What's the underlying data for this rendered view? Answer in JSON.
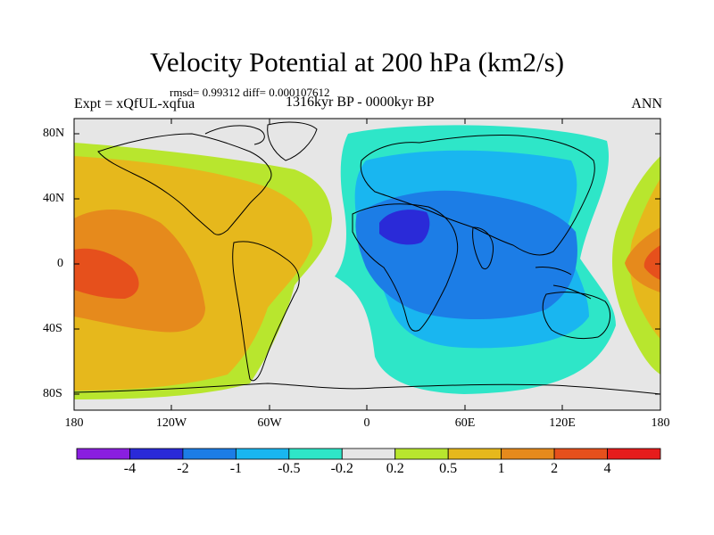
{
  "title": "Velocity Potential at 200 hPa (km2/s)",
  "stats": "rmsd= 0.99312  diff= 0.000107612",
  "experiment": "Expt = xQfUL-xqfua",
  "period": "1316kyr BP - 0000kyr BP",
  "season": "ANN",
  "lat_labels": [
    "80N",
    "40N",
    "0",
    "40S",
    "80S"
  ],
  "lon_labels": [
    "180",
    "120W",
    "60W",
    "0",
    "60E",
    "120E",
    "180"
  ],
  "colorbar": {
    "labels": [
      "-4",
      "-2",
      "-1",
      "-0.5",
      "-0.2",
      "0.2",
      "0.5",
      "1",
      "2",
      "4"
    ],
    "colors": [
      "#8a1ee0",
      "#2a2ad8",
      "#1c7de6",
      "#19b6f0",
      "#2ee6c8",
      "#e6e6e6",
      "#b8e62e",
      "#e6b81c",
      "#e68a1c",
      "#e6501c",
      "#e61c1c"
    ]
  },
  "map_regions": [
    {
      "name": "north-pacific-positive",
      "color": "#b8e62e"
    },
    {
      "name": "pacific-positive",
      "color": "#e6b81c"
    },
    {
      "name": "pacific-strong",
      "color": "#e68a1c"
    },
    {
      "name": "pacific-max",
      "color": "#e6501c"
    },
    {
      "name": "eastern-hemisphere-negative",
      "color": "#2ee6c8"
    },
    {
      "name": "eurasia-africa-negative",
      "color": "#19b6f0"
    },
    {
      "name": "core-negative",
      "color": "#1c7de6"
    },
    {
      "name": "sahara-min",
      "color": "#2a2ad8"
    }
  ]
}
